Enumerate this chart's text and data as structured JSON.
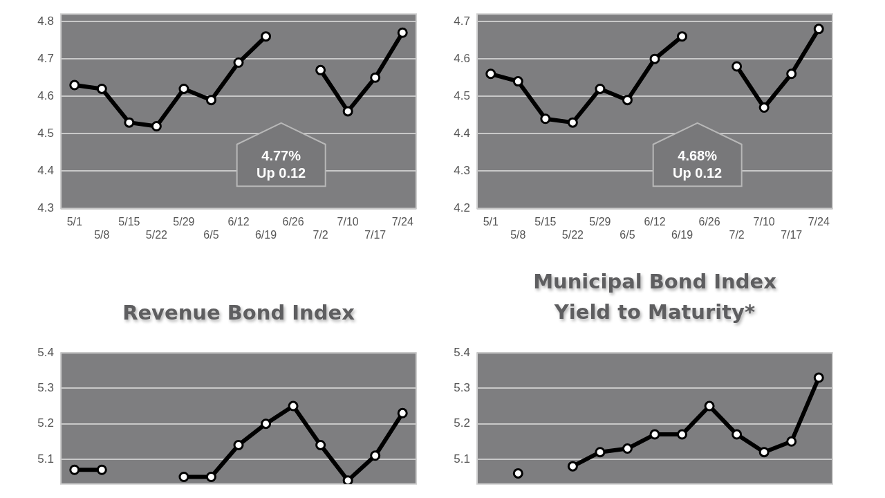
{
  "chart_data": [
    {
      "type": "line",
      "categories": [
        "5/1",
        "5/8",
        "5/15",
        "5/22",
        "5/29",
        "6/5",
        "6/12",
        "6/19",
        "6/26",
        "7/2",
        "7/10",
        "7/17",
        "7/24"
      ],
      "series": [
        {
          "color": "#000000",
          "values": [
            4.63,
            4.62,
            4.53,
            4.52,
            4.62,
            4.59,
            4.69,
            4.76,
            null,
            4.67,
            4.56,
            4.65,
            4.77
          ]
        }
      ],
      "ylim": [
        4.3,
        4.82
      ],
      "yticks": [
        4.3,
        4.4,
        4.5,
        4.6,
        4.7,
        4.8
      ],
      "grid": "y",
      "legend": false,
      "marker": "circle",
      "line_style": "solid",
      "annotations": [
        "4.77%",
        "Up 0.12"
      ]
    },
    {
      "type": "line",
      "categories": [
        "5/1",
        "5/8",
        "5/15",
        "5/22",
        "5/29",
        "6/5",
        "6/12",
        "6/19",
        "6/26",
        "7/2",
        "7/10",
        "7/17",
        "7/24"
      ],
      "series": [
        {
          "color": "#000000",
          "values": [
            4.56,
            4.54,
            4.44,
            4.43,
            4.52,
            4.49,
            4.6,
            4.66,
            null,
            4.58,
            4.47,
            4.56,
            4.68
          ]
        }
      ],
      "ylim": [
        4.2,
        4.72
      ],
      "yticks": [
        4.2,
        4.3,
        4.4,
        4.5,
        4.6,
        4.7
      ],
      "grid": "y",
      "legend": false,
      "marker": "circle",
      "line_style": "solid",
      "annotations": [
        "4.68%",
        "Up 0.12"
      ]
    },
    {
      "type": "line",
      "title": "Revenue Bond Index",
      "categories": [
        null,
        null,
        null,
        null,
        null,
        null,
        null,
        null,
        null,
        null,
        null,
        null,
        null
      ],
      "series": [
        {
          "color": "#000000",
          "values": [
            5.07,
            5.07,
            null,
            null,
            5.05,
            5.05,
            5.14,
            5.2,
            5.25,
            5.14,
            5.04,
            5.11,
            5.23
          ]
        }
      ],
      "ylim": [
        5.03,
        5.4
      ],
      "yticks": [
        5.1,
        5.2,
        5.3,
        5.4
      ],
      "grid": "y",
      "legend": false,
      "marker": "circle",
      "line_style": "solid"
    },
    {
      "type": "line",
      "title": "Municipal Bond Index\nYield to Maturity*",
      "categories": [
        null,
        null,
        null,
        null,
        null,
        null,
        null,
        null,
        null,
        null,
        null,
        null,
        null
      ],
      "series": [
        {
          "color": "#000000",
          "values": [
            null,
            5.06,
            null,
            5.08,
            5.12,
            5.13,
            5.17,
            5.17,
            5.25,
            5.17,
            5.12,
            5.15,
            5.33
          ]
        }
      ],
      "ylim": [
        5.03,
        5.4
      ],
      "yticks": [
        5.1,
        5.2,
        5.3,
        5.4
      ],
      "grid": "y",
      "legend": false,
      "marker": "circle",
      "line_style": "solid"
    }
  ]
}
